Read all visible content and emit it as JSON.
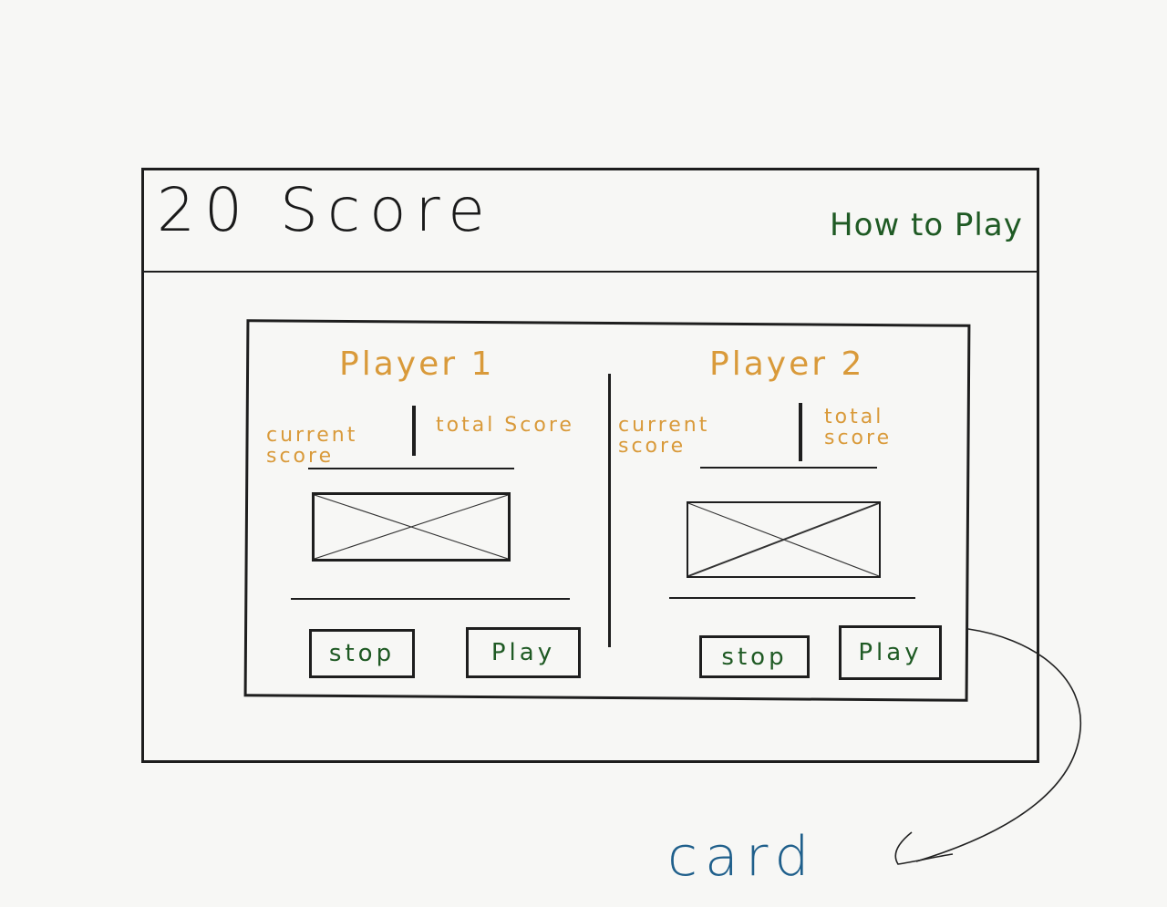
{
  "header": {
    "title": "20 Score",
    "help_link": "How to Play"
  },
  "players": [
    {
      "name": "Player 1",
      "current_score_label": "current score",
      "total_score_label": "total Score",
      "stop_label": "stop",
      "play_label": "Play"
    },
    {
      "name": "Player 2",
      "current_score_label": "current score",
      "total_score_label": "total score",
      "stop_label": "stop",
      "play_label": "Play"
    }
  ],
  "annotation": {
    "label": "card"
  },
  "colors": {
    "player_text": "#d99a3a",
    "button_text": "#1f5a24",
    "annotation": "#1f5f8b",
    "ink": "#1e1e1e"
  }
}
